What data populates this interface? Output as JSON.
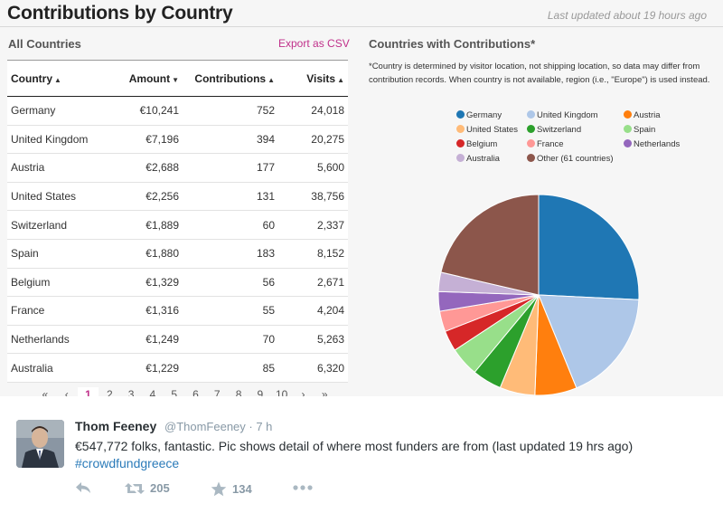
{
  "dashboard": {
    "title": "Contributions by Country",
    "last_updated": "Last updated about 19 hours ago",
    "left_title": "All Countries",
    "export_label": "Export as CSV",
    "right_title": "Countries with Contributions*",
    "note": "*Country is determined by visitor location, not shipping location, so data may differ from contribution records. When country is not available, region (i.e., \"Europe\") is used instead."
  },
  "table": {
    "headers": {
      "country": "Country",
      "amount": "Amount",
      "contributions": "Contributions",
      "visits": "Visits"
    },
    "rows": [
      {
        "country": "Germany",
        "amount": "€10,241",
        "contributions": "752",
        "visits": "24,018"
      },
      {
        "country": "United Kingdom",
        "amount": "€7,196",
        "contributions": "394",
        "visits": "20,275"
      },
      {
        "country": "Austria",
        "amount": "€2,688",
        "contributions": "177",
        "visits": "5,600"
      },
      {
        "country": "United States",
        "amount": "€2,256",
        "contributions": "131",
        "visits": "38,756"
      },
      {
        "country": "Switzerland",
        "amount": "€1,889",
        "contributions": "60",
        "visits": "2,337"
      },
      {
        "country": "Spain",
        "amount": "€1,880",
        "contributions": "183",
        "visits": "8,152"
      },
      {
        "country": "Belgium",
        "amount": "€1,329",
        "contributions": "56",
        "visits": "2,671"
      },
      {
        "country": "France",
        "amount": "€1,316",
        "contributions": "55",
        "visits": "4,204"
      },
      {
        "country": "Netherlands",
        "amount": "€1,249",
        "contributions": "70",
        "visits": "5,263"
      },
      {
        "country": "Australia",
        "amount": "€1,229",
        "contributions": "85",
        "visits": "6,320"
      }
    ]
  },
  "pagination": {
    "first": "«",
    "prev": "‹",
    "pages": [
      "1",
      "2",
      "3",
      "4",
      "5",
      "6",
      "7",
      "8",
      "9",
      "10"
    ],
    "active": "1",
    "next": "›",
    "last": "»"
  },
  "chart_data": {
    "type": "pie",
    "title": "Countries with Contributions*",
    "legend_position": "top",
    "slices": [
      {
        "label": "Germany",
        "value": 10241,
        "color": "#1f77b4"
      },
      {
        "label": "United Kingdom",
        "value": 7196,
        "color": "#aec7e8"
      },
      {
        "label": "Austria",
        "value": 2688,
        "color": "#ff7f0e"
      },
      {
        "label": "United States",
        "value": 2256,
        "color": "#ffbb78"
      },
      {
        "label": "Switzerland",
        "value": 1889,
        "color": "#2ca02c"
      },
      {
        "label": "Spain",
        "value": 1880,
        "color": "#98df8a"
      },
      {
        "label": "Belgium",
        "value": 1329,
        "color": "#d62728"
      },
      {
        "label": "France",
        "value": 1316,
        "color": "#ff9896"
      },
      {
        "label": "Netherlands",
        "value": 1249,
        "color": "#9467bd"
      },
      {
        "label": "Australia",
        "value": 1229,
        "color": "#c5b0d5"
      },
      {
        "label": "Other (61 countries)",
        "value": 8500,
        "color": "#8c564b"
      }
    ]
  },
  "tweet": {
    "author_name": "Thom Feeney",
    "author_handle": "@ThomFeeney · 7 h",
    "text": "€547,772 folks, fantastic. Pic shows detail of where most funders are from (last updated 19 hrs ago)",
    "hashtag": "#crowdfundgreece",
    "retweets": "205",
    "favorites": "134"
  },
  "icons": {
    "reply": "reply-icon",
    "retweet": "retweet-icon",
    "favorite": "star-icon",
    "more": "more-icon"
  }
}
